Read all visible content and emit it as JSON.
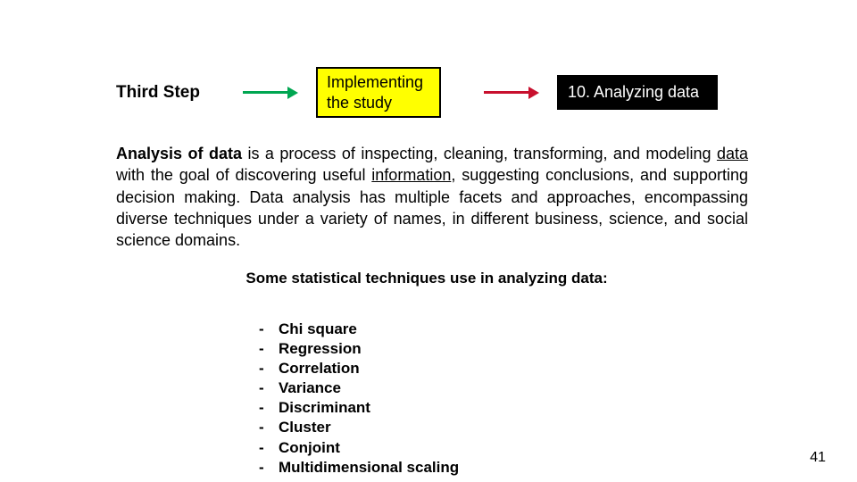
{
  "header": {
    "step_label": "Third Step",
    "box1": "Implementing the study",
    "box2": "10. Analyzing data",
    "arrow1_color": "#00a651",
    "arrow2_color": "#c8102e",
    "box1_bg": "#ffff00",
    "box2_bg": "#000000"
  },
  "paragraph": {
    "lead_bold": "Analysis of data",
    "seg1": " is a process of inspecting, cleaning, transforming, and modeling ",
    "u1": "data",
    "seg2": " with the goal of discovering useful ",
    "u2": "information",
    "seg3": ", suggesting conclusions, and supporting decision making. Data analysis has multiple facets and approaches, encompassing diverse techniques under a variety of names, in different business, science, and social science domains."
  },
  "subheading": "Some statistical techniques use in analyzing data:",
  "techniques": [
    "Chi square",
    "Regression",
    "Correlation",
    "Variance",
    "Discriminant",
    "Cluster",
    "Conjoint",
    "Multidimensional scaling"
  ],
  "page_number": "41"
}
